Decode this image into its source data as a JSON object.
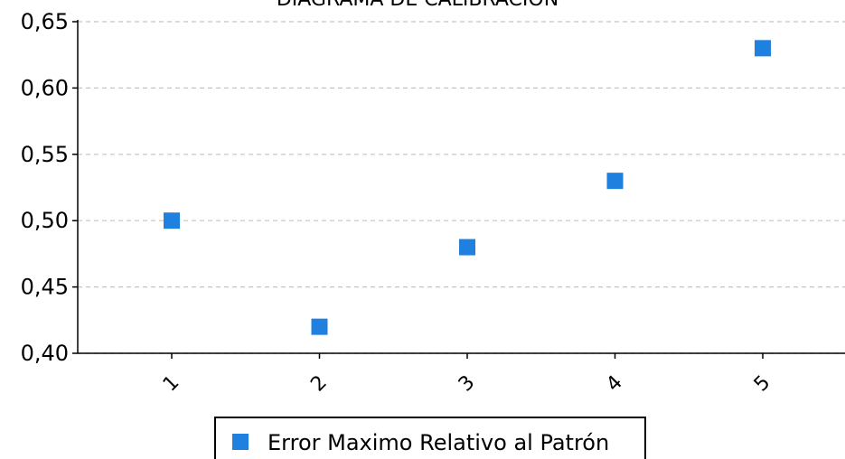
{
  "chart_data": {
    "type": "scatter",
    "title": "DIAGRAMA DE CALIBRACION",
    "xlabel": "",
    "ylabel": "",
    "x": [
      1,
      2,
      3,
      4,
      5
    ],
    "x_tick_labels": [
      "1",
      "2",
      "3",
      "4",
      "5"
    ],
    "y_tick_labels": [
      "0,40",
      "0,45",
      "0,50",
      "0,55",
      "0,60",
      "0,65"
    ],
    "ylim": [
      0.4,
      0.65
    ],
    "y_ticks": [
      0.4,
      0.45,
      0.5,
      0.55,
      0.6,
      0.65
    ],
    "grid": true,
    "legend_position": "bottom",
    "series": [
      {
        "name": "Error Maximo Relativo al Patrón",
        "color": "#2080e0",
        "marker": "square",
        "values": [
          0.5,
          0.42,
          0.48,
          0.53,
          0.63
        ]
      }
    ]
  }
}
